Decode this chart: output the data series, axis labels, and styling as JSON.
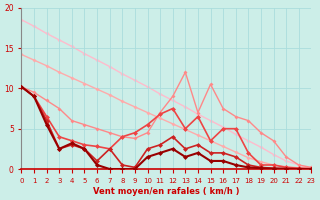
{
  "background_color": "#cceee8",
  "grid_color": "#aadddd",
  "xlabel": "Vent moyen/en rafales ( km/h )",
  "xlim": [
    0,
    23
  ],
  "ylim": [
    0,
    20
  ],
  "yticks": [
    0,
    5,
    10,
    15,
    20
  ],
  "xticks": [
    0,
    1,
    2,
    3,
    4,
    5,
    6,
    7,
    8,
    9,
    10,
    11,
    12,
    13,
    14,
    15,
    16,
    17,
    18,
    19,
    20,
    21,
    22,
    23
  ],
  "series": [
    {
      "x": [
        0,
        1,
        2,
        3,
        4,
        5,
        6,
        7,
        8,
        9,
        10,
        11,
        12,
        13,
        14,
        15,
        16,
        17,
        18,
        19,
        20,
        21,
        22,
        23
      ],
      "y": [
        18.5,
        17.7,
        16.8,
        16.0,
        15.2,
        14.3,
        13.5,
        12.7,
        11.8,
        11.0,
        10.2,
        9.3,
        8.5,
        7.7,
        6.8,
        6.0,
        5.2,
        4.3,
        3.5,
        2.7,
        1.8,
        1.0,
        0.5,
        0.1
      ],
      "color": "#ffbbcc",
      "lw": 1.0,
      "marker": "D",
      "ms": 2.0,
      "zorder": 1
    },
    {
      "x": [
        0,
        1,
        2,
        3,
        4,
        5,
        6,
        7,
        8,
        9,
        10,
        11,
        12,
        13,
        14,
        15,
        16,
        17,
        18,
        19,
        20,
        21,
        22,
        23
      ],
      "y": [
        14.2,
        13.5,
        12.8,
        12.0,
        11.3,
        10.6,
        9.9,
        9.2,
        8.4,
        7.7,
        7.0,
        6.3,
        5.6,
        4.9,
        4.2,
        3.5,
        2.8,
        2.1,
        1.4,
        0.9,
        0.5,
        0.3,
        0.15,
        0.05
      ],
      "color": "#ffaaaa",
      "lw": 1.0,
      "marker": "D",
      "ms": 2.0,
      "zorder": 2
    },
    {
      "x": [
        0,
        1,
        2,
        3,
        4,
        5,
        6,
        7,
        8,
        9,
        10,
        11,
        12,
        13,
        14,
        15,
        16,
        17,
        18,
        19,
        20,
        21,
        22,
        23
      ],
      "y": [
        10.2,
        9.5,
        8.5,
        7.5,
        6.0,
        5.5,
        5.0,
        4.5,
        4.0,
        3.8,
        4.5,
        7.0,
        9.0,
        12.0,
        7.0,
        10.5,
        7.5,
        6.5,
        6.0,
        4.5,
        3.5,
        1.5,
        0.5,
        0.2
      ],
      "color": "#ff8888",
      "lw": 1.0,
      "marker": "D",
      "ms": 2.0,
      "zorder": 3
    },
    {
      "x": [
        0,
        1,
        2,
        3,
        4,
        5,
        6,
        7,
        8,
        9,
        10,
        11,
        12,
        13,
        14,
        15,
        16,
        17,
        18,
        19,
        20,
        21,
        22,
        23
      ],
      "y": [
        10.2,
        9.0,
        6.5,
        4.0,
        3.5,
        3.0,
        2.8,
        2.5,
        4.0,
        4.5,
        5.5,
        6.8,
        7.5,
        5.0,
        6.5,
        3.5,
        5.0,
        5.0,
        2.0,
        0.5,
        0.5,
        0.2,
        0.1,
        0.05
      ],
      "color": "#ee4444",
      "lw": 1.2,
      "marker": "D",
      "ms": 2.5,
      "zorder": 4
    },
    {
      "x": [
        0,
        1,
        2,
        3,
        4,
        5,
        6,
        7,
        8,
        9,
        10,
        11,
        12,
        13,
        14,
        15,
        16,
        17,
        18,
        19,
        20,
        21,
        22,
        23
      ],
      "y": [
        10.2,
        9.0,
        6.0,
        2.5,
        3.0,
        2.5,
        1.0,
        2.5,
        0.5,
        0.2,
        2.5,
        3.0,
        4.0,
        2.5,
        3.0,
        2.0,
        2.0,
        1.5,
        0.5,
        0.2,
        0.1,
        0.05,
        0.02,
        0.01
      ],
      "color": "#cc2222",
      "lw": 1.2,
      "marker": "D",
      "ms": 2.5,
      "zorder": 5
    },
    {
      "x": [
        0,
        1,
        2,
        3,
        4,
        5,
        6,
        7,
        8,
        9,
        10,
        11,
        12,
        13,
        14,
        15,
        16,
        17,
        18,
        19,
        20,
        21,
        22,
        23
      ],
      "y": [
        10.2,
        9.0,
        5.5,
        2.5,
        3.2,
        2.5,
        0.5,
        0.0,
        0.0,
        0.0,
        1.5,
        2.0,
        2.5,
        1.5,
        2.0,
        1.0,
        1.0,
        0.5,
        0.2,
        0.1,
        0.05,
        0.02,
        0.01,
        0.0
      ],
      "color": "#990000",
      "lw": 1.5,
      "marker": "D",
      "ms": 2.5,
      "zorder": 6
    }
  ]
}
